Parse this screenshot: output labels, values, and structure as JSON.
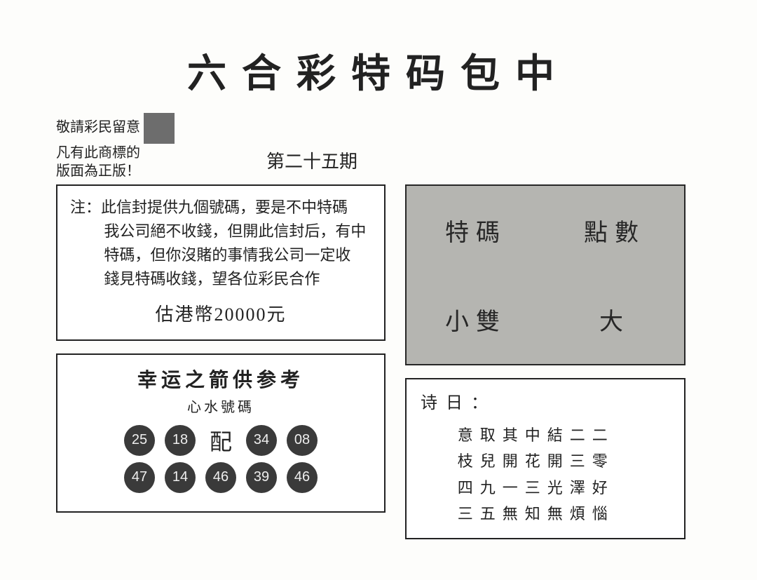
{
  "title": "六合彩特码包中",
  "trademark_notice": {
    "line1": "敬請彩民留意",
    "line2": "凡有此商標的",
    "line3": "版面為正版！"
  },
  "issue": "第二十五期",
  "note_box": {
    "label": "注：",
    "body1": "此信封提供九個號碼，要是不中特碼",
    "body2": "我公司絕不收錢，但開此信封后，有中",
    "body3": "特碼，但你沒賭的事情我公司一定收",
    "body4": "錢見特碼收錢，望各位彩民合作",
    "price": "估港幣20000元"
  },
  "lucky": {
    "title": "幸运之箭供参考",
    "subtitle": "心水號碼",
    "match": "配",
    "row1": [
      "25",
      "18"
    ],
    "row1b": [
      "34",
      "08"
    ],
    "row2": [
      "47",
      "14",
      "46",
      "39",
      "46"
    ]
  },
  "grid": {
    "tl": "特碼",
    "tr": "點數",
    "bl": "小雙",
    "br": "大"
  },
  "poem": {
    "title": "诗日：",
    "lines": [
      "意取其中結二二",
      "枝兒開花開三零",
      "四九一三光澤好",
      "三五無知無煩惱"
    ]
  },
  "colors": {
    "text": "#222222",
    "paper": "#fdfdfb",
    "ball_bg": "#3a3a3a",
    "ball_fg": "#eeeeee",
    "grid_bg": "#b8b8b4",
    "border": "#222222"
  }
}
